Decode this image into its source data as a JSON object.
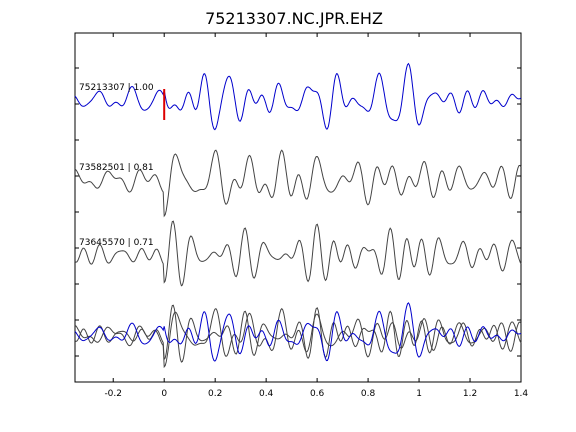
{
  "chart_data": {
    "type": "line",
    "title": "75213307.NC.JPR.EHZ",
    "xlabel": "",
    "ylabel": "",
    "xlim": [
      -0.35,
      1.4
    ],
    "x_ticks": [
      -0.2,
      0,
      0.2,
      0.4,
      0.6,
      0.8,
      1,
      1.2,
      1.4
    ],
    "x_tick_labels": [
      "-0.2",
      "0",
      "0.2",
      "0.4",
      "0.6",
      "0.8",
      "1",
      "1.2",
      "1.4"
    ],
    "grid": false,
    "pick_time": 0.0,
    "colors": {
      "primary": "#0000cc",
      "secondary": "#444444",
      "pick": "#dd0000"
    },
    "traces": [
      {
        "label": "75213307 | 1.00",
        "color": "#0000cc",
        "seed": 11,
        "baseline": 0.0
      },
      {
        "label": "73582501 | 0.81",
        "color": "#444444",
        "seed": 23,
        "baseline": 0.0
      },
      {
        "label": "73645570 | 0.71",
        "color": "#444444",
        "seed": 37,
        "baseline": 0.0
      }
    ],
    "overlay": {
      "label": "",
      "series": [
        "75213307 | 1.00",
        "73582501 | 0.81",
        "73645570 | 0.71"
      ]
    }
  }
}
